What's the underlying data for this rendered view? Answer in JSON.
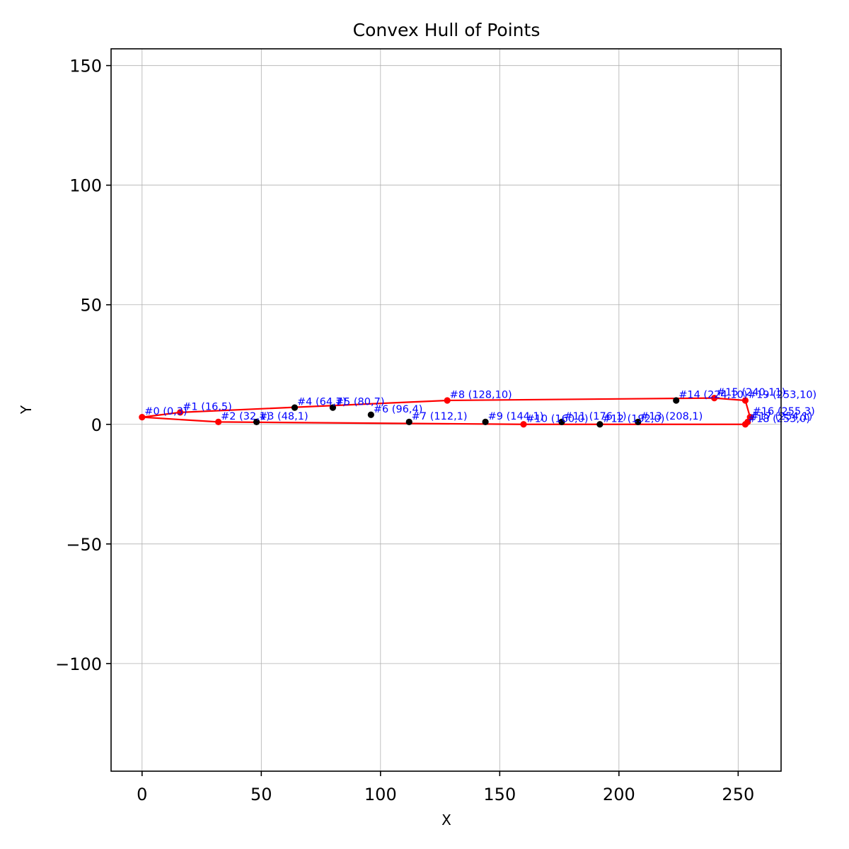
{
  "chart_data": {
    "type": "scatter",
    "title": "Convex Hull of Points",
    "xlabel": "X",
    "ylabel": "Y",
    "xlim": [
      -13,
      268
    ],
    "ylim": [
      -145,
      157
    ],
    "xticks": [
      0,
      50,
      100,
      150,
      200,
      250
    ],
    "yticks": [
      -100,
      -50,
      0,
      50,
      100,
      150
    ],
    "xtick_labels": [
      "0",
      "50",
      "100",
      "150",
      "200",
      "250"
    ],
    "ytick_labels": [
      "−100",
      "−50",
      "0",
      "50",
      "100",
      "150"
    ],
    "grid": true,
    "points": [
      {
        "x": 0,
        "y": 3,
        "label": "#0 (0,3)",
        "hull": true
      },
      {
        "x": 16,
        "y": 5,
        "label": "#1 (16,5)",
        "hull": true
      },
      {
        "x": 32,
        "y": 1,
        "label": "#2 (32,1)",
        "hull": true
      },
      {
        "x": 48,
        "y": 1,
        "label": "#3 (48,1)",
        "hull": false
      },
      {
        "x": 64,
        "y": 7,
        "label": "#4 (64,7)",
        "hull": false
      },
      {
        "x": 80,
        "y": 7,
        "label": "#5 (80,7)",
        "hull": false
      },
      {
        "x": 96,
        "y": 4,
        "label": "#6 (96,4)",
        "hull": false
      },
      {
        "x": 112,
        "y": 1,
        "label": "#7 (112,1)",
        "hull": false
      },
      {
        "x": 128,
        "y": 10,
        "label": "#8 (128,10)",
        "hull": true
      },
      {
        "x": 144,
        "y": 1,
        "label": "#9 (144,1)",
        "hull": false
      },
      {
        "x": 160,
        "y": 0,
        "label": "#10 (160,0)",
        "hull": true
      },
      {
        "x": 176,
        "y": 1,
        "label": "#11 (176,1)",
        "hull": false
      },
      {
        "x": 192,
        "y": 0,
        "label": "#12 (192,0)",
        "hull": false
      },
      {
        "x": 208,
        "y": 1,
        "label": "#13 (208,1)",
        "hull": false
      },
      {
        "x": 224,
        "y": 10,
        "label": "#14 (224,10)",
        "hull": false
      },
      {
        "x": 240,
        "y": 11,
        "label": "#15 (240,11)",
        "hull": true
      },
      {
        "x": 255,
        "y": 3,
        "label": "#16 (255,3)",
        "hull": true
      },
      {
        "x": 254,
        "y": 1,
        "label": "#17 (254,1)",
        "hull": true
      },
      {
        "x": 253,
        "y": 0,
        "label": "#18 (253,0)",
        "hull": true
      },
      {
        "x": 253,
        "y": 10,
        "label": "#19 (253,10)",
        "hull": true
      }
    ],
    "hull_order": [
      0,
      1,
      8,
      15,
      19,
      16,
      17,
      18,
      10,
      2,
      0
    ],
    "colors": {
      "hull": "#ff0000",
      "hull_point": "#ff0000",
      "point": "#000000",
      "label": "#0000ff",
      "grid": "#b0b0b0",
      "axis": "#000000"
    }
  }
}
